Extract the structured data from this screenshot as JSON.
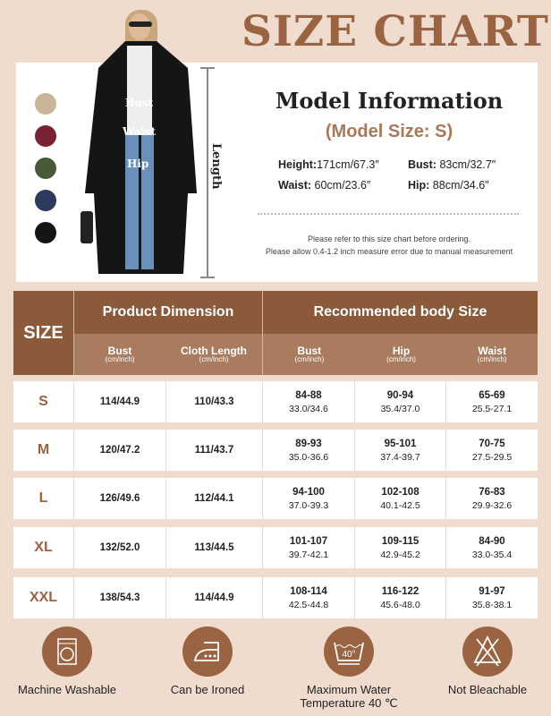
{
  "title": "SIZE CHART",
  "colors": {
    "accent": "#9a6443",
    "header": "#8b5a3a",
    "subheader": "#a97b5f",
    "background": "#f0dcce"
  },
  "swatches": [
    "#c9b597",
    "#7a2233",
    "#4a5a38",
    "#2c3a5c",
    "#151515"
  ],
  "model_labels": {
    "bust": "Bust",
    "waist": "Waist",
    "hip": "Hip",
    "length": "Length"
  },
  "model_info": {
    "title": "Model Information",
    "subtitle": "(Model Size: S)",
    "height_label": "Height:",
    "height": "171cm/67.3″",
    "bust_label": "Bust:",
    "bust": "83cm/32.7″",
    "waist_label": "Waist:",
    "waist": "60cm/23.6″",
    "hip_label": "Hip:",
    "hip": "88cm/34.6″",
    "note1": "Please refer to this size chart before ordering.",
    "note2": "Please allow 0.4-1.2 inch measure error due to manual measurement"
  },
  "table": {
    "size_header": "SIZE",
    "product_header": "Product Dimension",
    "body_header": "Recommended body Size",
    "unit": "(cm/inch)",
    "cols": [
      "Bust",
      "Cloth Length",
      "Bust",
      "Hip",
      "Waist"
    ],
    "rows": [
      {
        "size": "S",
        "bust": "114/44.9",
        "length": "110/43.3",
        "b_cm": "84-88",
        "b_in": "33.0/34.6",
        "h_cm": "90-94",
        "h_in": "35.4/37.0",
        "w_cm": "65-69",
        "w_in": "25.5-27.1"
      },
      {
        "size": "M",
        "bust": "120/47.2",
        "length": "111/43.7",
        "b_cm": "89-93",
        "b_in": "35.0-36.6",
        "h_cm": "95-101",
        "h_in": "37.4-39.7",
        "w_cm": "70-75",
        "w_in": "27.5-29.5"
      },
      {
        "size": "L",
        "bust": "126/49.6",
        "length": "112/44.1",
        "b_cm": "94-100",
        "b_in": "37.0-39.3",
        "h_cm": "102-108",
        "h_in": "40.1-42.5",
        "w_cm": "76-83",
        "w_in": "29.9-32.6"
      },
      {
        "size": "XL",
        "bust": "132/52.0",
        "length": "113/44.5",
        "b_cm": "101-107",
        "b_in": "39.7-42.1",
        "h_cm": "109-115",
        "h_in": "42.9-45.2",
        "w_cm": "84-90",
        "w_in": "33.0-35.4"
      },
      {
        "size": "XXL",
        "bust": "138/54.3",
        "length": "114/44.9",
        "b_cm": "108-114",
        "b_in": "42.5-44.8",
        "h_cm": "116-122",
        "h_in": "45.6-48.0",
        "w_cm": "91-97",
        "w_in": "35.8-38.1"
      }
    ]
  },
  "care": [
    {
      "icon": "washing-machine-icon",
      "label": "Machine Washable"
    },
    {
      "icon": "iron-icon",
      "label": "Can be Ironed"
    },
    {
      "icon": "wash-40-icon",
      "label": "Maximum Water Temperature 40 ℃",
      "temp": "40°"
    },
    {
      "icon": "no-bleach-icon",
      "label": "Not Bleachable"
    }
  ]
}
